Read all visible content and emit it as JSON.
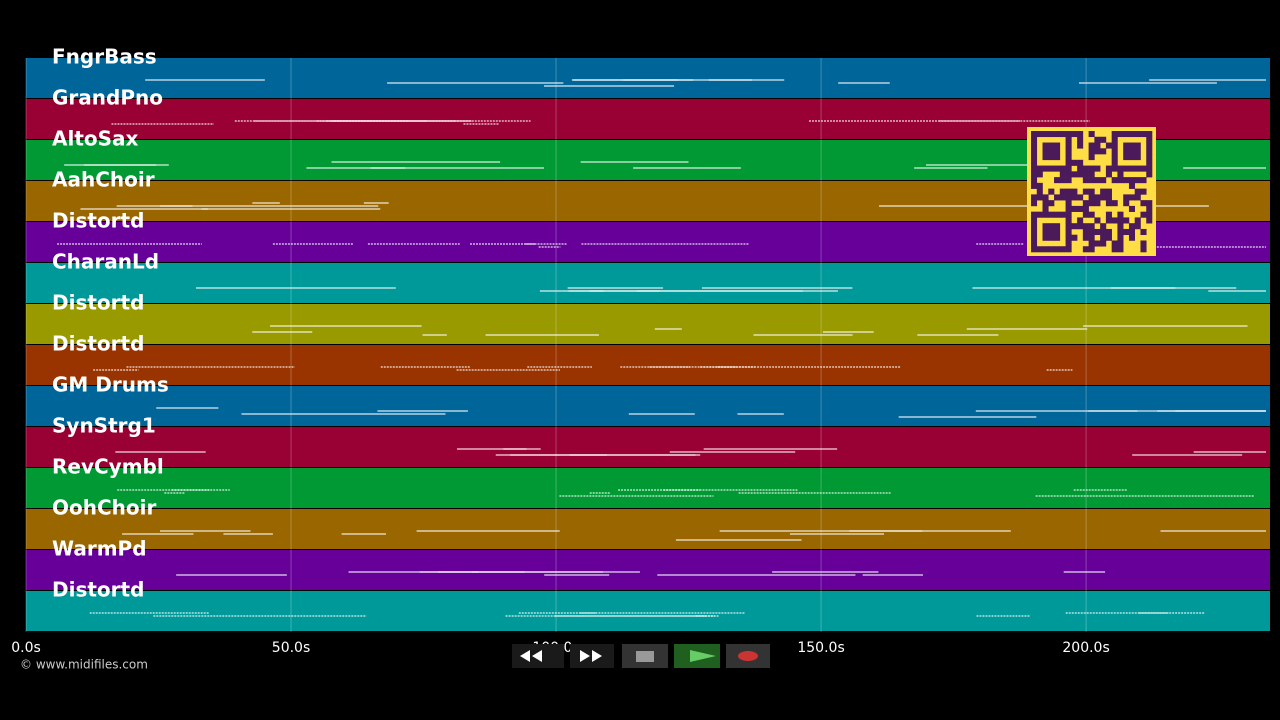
{
  "tracks": [
    {
      "name": "FngrBass",
      "color": "#006699"
    },
    {
      "name": "GrandPno",
      "color": "#990033"
    },
    {
      "name": "AltoSax",
      "color": "#009933"
    },
    {
      "name": "AahChoir",
      "color": "#996600"
    },
    {
      "name": "Distortd",
      "color": "#660099"
    },
    {
      "name": "CharanLd",
      "color": "#009999"
    },
    {
      "name": "Distortd",
      "color": "#999900"
    },
    {
      "name": "Distortd",
      "color": "#993300"
    },
    {
      "name": "GM Drums",
      "color": "#006699"
    },
    {
      "name": "SynStrg1",
      "color": "#990033"
    },
    {
      "name": "RevCymbl",
      "color": "#009933"
    },
    {
      "name": "OohChoir",
      "color": "#996600"
    },
    {
      "name": "WarmPd",
      "color": "#660099"
    },
    {
      "name": "Distortd",
      "color": "#009999"
    }
  ],
  "time_axis": {
    "xlim": [
      0,
      234.7
    ],
    "xticks": [
      {
        "value": 0,
        "label": "0.0s"
      },
      {
        "value": 50,
        "label": "50.0s"
      },
      {
        "value": 100,
        "label": "100.0s"
      },
      {
        "value": 150,
        "label": "150.0s"
      },
      {
        "value": 200,
        "label": "200.0s"
      }
    ]
  },
  "credit": "© www.midifiles.com"
}
